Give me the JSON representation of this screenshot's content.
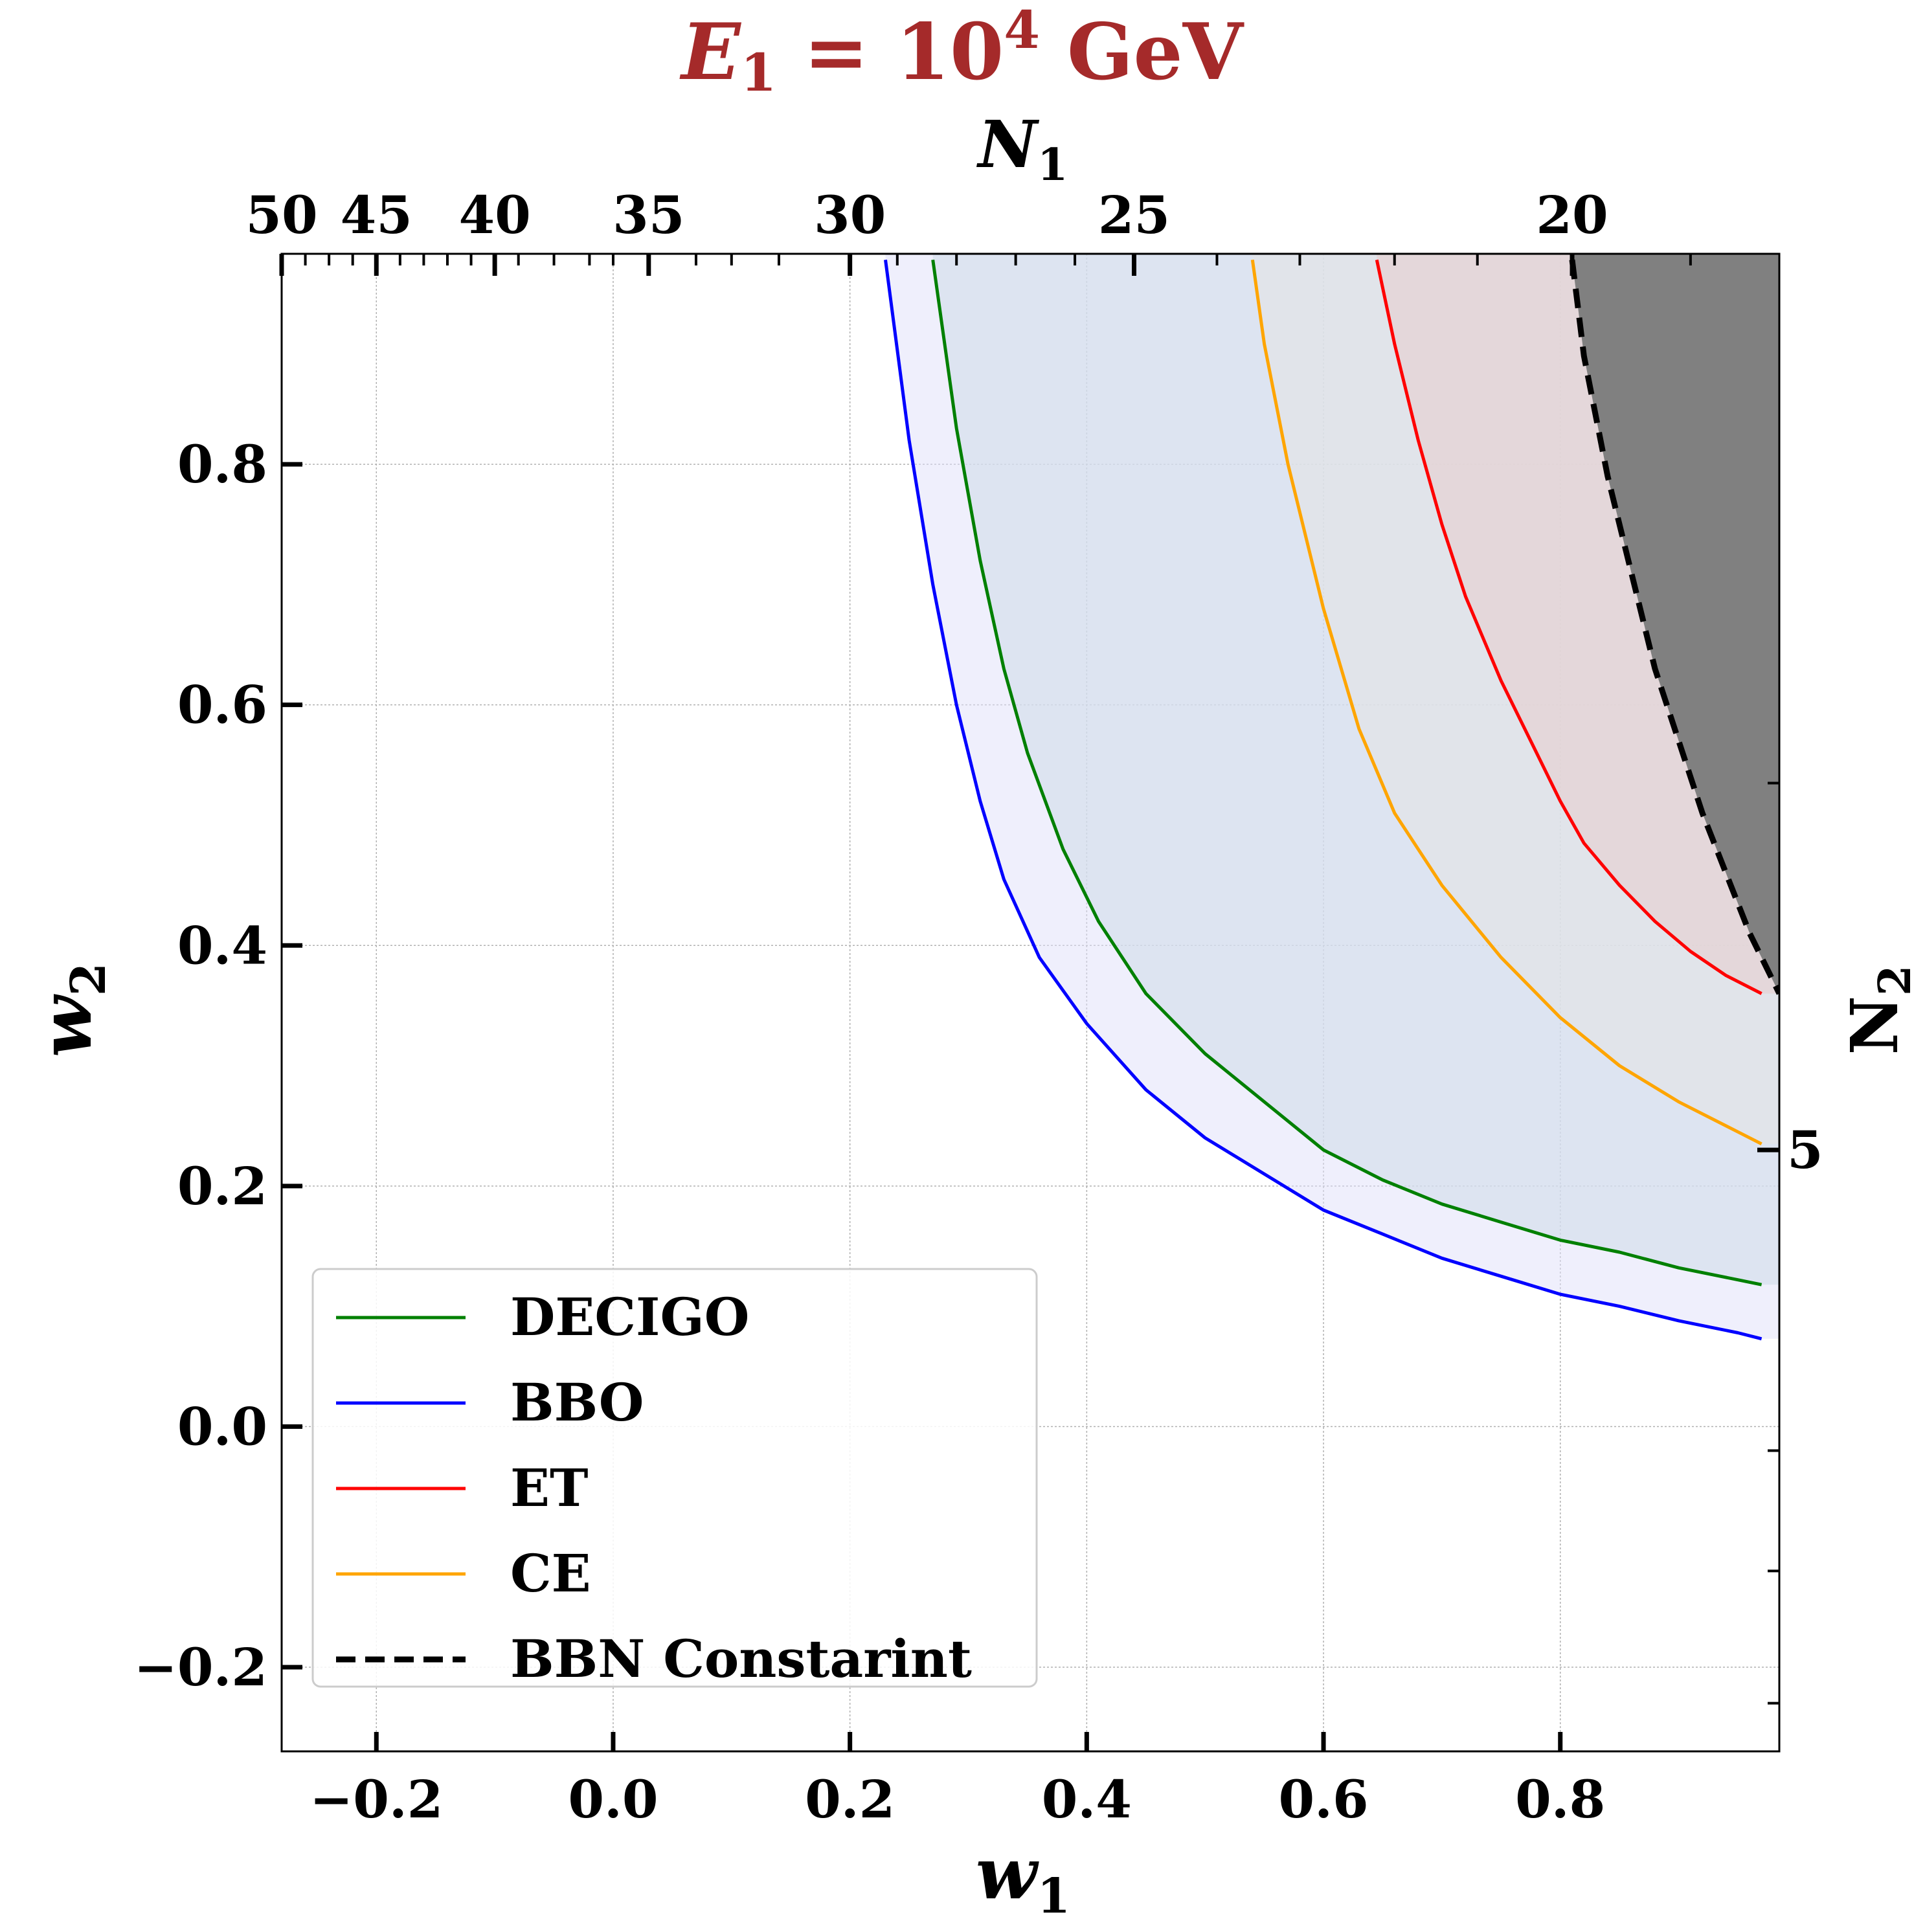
{
  "chart_data": {
    "type": "line",
    "title": {
      "var": "E",
      "sub": "1",
      "eq": " = 10",
      "sup": "4",
      "unit": " GeV",
      "color": "#a52a2a"
    },
    "xlabel": {
      "var": "w",
      "sub": "1"
    },
    "ylabel": {
      "var": "w",
      "sub": "2"
    },
    "top_label": {
      "var": "N",
      "sub": "1"
    },
    "right_label": {
      "var": "N",
      "sub": "2"
    },
    "xlim": [
      -0.28,
      0.985
    ],
    "ylim": [
      -0.27,
      0.975
    ],
    "xticks": [
      {
        "v": -0.2,
        "t": "−0.2"
      },
      {
        "v": 0.0,
        "t": "0.0"
      },
      {
        "v": 0.2,
        "t": "0.2"
      },
      {
        "v": 0.4,
        "t": "0.4"
      },
      {
        "v": 0.6,
        "t": "0.6"
      },
      {
        "v": 0.8,
        "t": "0.8"
      }
    ],
    "yticks": [
      {
        "v": -0.2,
        "t": "−0.2"
      },
      {
        "v": 0.0,
        "t": "0.0"
      },
      {
        "v": 0.2,
        "t": "0.2"
      },
      {
        "v": 0.4,
        "t": "0.4"
      },
      {
        "v": 0.6,
        "t": "0.6"
      },
      {
        "v": 0.8,
        "t": "0.8"
      }
    ],
    "top_ticks_labeled": [
      {
        "w": -0.28,
        "t": "50"
      },
      {
        "w": -0.2,
        "t": "45"
      },
      {
        "w": -0.1,
        "t": "40"
      },
      {
        "w": 0.03,
        "t": "35"
      },
      {
        "w": 0.2,
        "t": "30"
      },
      {
        "w": 0.44,
        "t": "25"
      },
      {
        "w": 0.81,
        "t": "20"
      }
    ],
    "top_ticks_minor": [
      -0.26,
      -0.24,
      -0.22,
      -0.18,
      -0.16,
      -0.14,
      -0.12,
      -0.08,
      -0.05,
      -0.02,
      0.0,
      0.07,
      0.1,
      0.14,
      0.24,
      0.29,
      0.34,
      0.39,
      0.51,
      0.58,
      0.66,
      0.73,
      0.91
    ],
    "right_ticks_labeled": [
      {
        "w": 0.23,
        "t": "5"
      }
    ],
    "right_ticks_minor": [
      0.535,
      -0.02,
      -0.12,
      -0.23
    ],
    "grid": true,
    "series": [
      {
        "name": "DECIGO",
        "color": "#008000",
        "fill": "#d0dcea",
        "fill_opacity": 0.6,
        "x": [
          0.27,
          0.29,
          0.31,
          0.33,
          0.35,
          0.38,
          0.41,
          0.45,
          0.5,
          0.55,
          0.6,
          0.65,
          0.7,
          0.75,
          0.8,
          0.85,
          0.9,
          0.95,
          0.97
        ],
        "y": [
          0.97,
          0.83,
          0.72,
          0.63,
          0.56,
          0.48,
          0.42,
          0.36,
          0.31,
          0.27,
          0.23,
          0.205,
          0.185,
          0.17,
          0.155,
          0.145,
          0.132,
          0.122,
          0.118
        ]
      },
      {
        "name": "BBO",
        "color": "#0000ff",
        "fill": "#dfe0fa",
        "fill_opacity": 0.5,
        "x": [
          0.23,
          0.25,
          0.27,
          0.29,
          0.31,
          0.33,
          0.36,
          0.4,
          0.45,
          0.5,
          0.55,
          0.6,
          0.65,
          0.7,
          0.75,
          0.8,
          0.85,
          0.9,
          0.95,
          0.97
        ],
        "y": [
          0.97,
          0.82,
          0.7,
          0.6,
          0.52,
          0.455,
          0.39,
          0.335,
          0.28,
          0.24,
          0.21,
          0.18,
          0.16,
          0.14,
          0.125,
          0.11,
          0.1,
          0.088,
          0.078,
          0.073
        ]
      },
      {
        "name": "ET",
        "color": "#ff0000",
        "fill": "#e7cccc",
        "fill_opacity": 0.55,
        "x": [
          0.645,
          0.66,
          0.68,
          0.7,
          0.72,
          0.75,
          0.78,
          0.8,
          0.82,
          0.85,
          0.88,
          0.91,
          0.94,
          0.97
        ],
        "y": [
          0.97,
          0.9,
          0.82,
          0.75,
          0.69,
          0.62,
          0.56,
          0.52,
          0.485,
          0.45,
          0.42,
          0.395,
          0.375,
          0.36
        ]
      },
      {
        "name": "CE",
        "color": "#ffa500",
        "fill": "#e3e3e3",
        "fill_opacity": 0.55,
        "x": [
          0.54,
          0.55,
          0.57,
          0.6,
          0.63,
          0.66,
          0.7,
          0.75,
          0.8,
          0.85,
          0.9,
          0.95,
          0.97
        ],
        "y": [
          0.97,
          0.9,
          0.8,
          0.68,
          0.58,
          0.51,
          0.45,
          0.39,
          0.34,
          0.3,
          0.27,
          0.245,
          0.235
        ]
      },
      {
        "name": "BBN Constarint",
        "color": "#000000",
        "dashed": true,
        "fill": "#808080",
        "fill_opacity": 1,
        "x": [
          0.81,
          0.82,
          0.84,
          0.86,
          0.88,
          0.9,
          0.92,
          0.94,
          0.96,
          0.985
        ],
        "y": [
          0.97,
          0.89,
          0.79,
          0.71,
          0.63,
          0.57,
          0.51,
          0.46,
          0.41,
          0.36
        ]
      }
    ],
    "legend": {
      "position": "lower-left",
      "entries": [
        "DECIGO",
        "BBO",
        "ET",
        "CE",
        "BBN Constarint"
      ]
    }
  }
}
